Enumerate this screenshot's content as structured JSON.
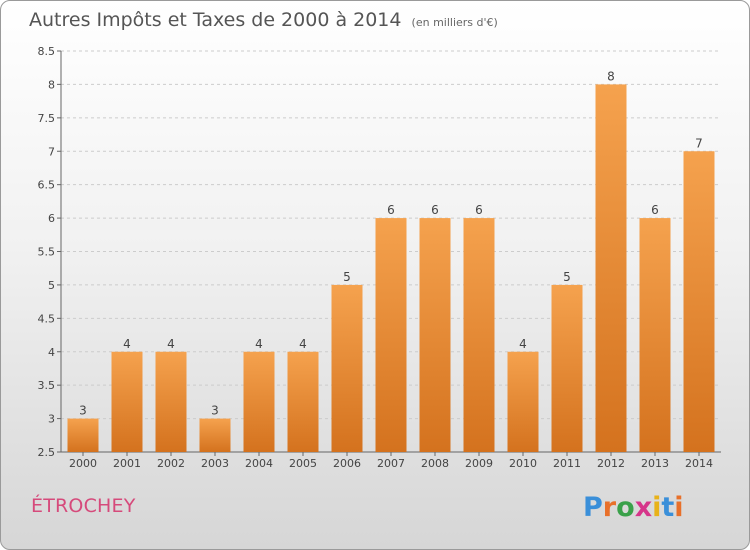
{
  "title": "Autres Impôts et Taxes de 2000 à 2014",
  "unit_label": "(en milliers d'€)",
  "commune": "ÉTROCHEY",
  "logo_text": "Proxiti",
  "colors": {
    "bar_top": "#f5a24e",
    "bar_bottom": "#d4721e",
    "commune": "#d64a7b",
    "grid": "#cccccc"
  },
  "chart_data": {
    "type": "bar",
    "categories": [
      "2000",
      "2001",
      "2002",
      "2003",
      "2004",
      "2005",
      "2006",
      "2007",
      "2008",
      "2009",
      "2010",
      "2011",
      "2012",
      "2013",
      "2014"
    ],
    "values": [
      3,
      4,
      4,
      3,
      4,
      4,
      5,
      6,
      6,
      6,
      4,
      5,
      8,
      6,
      7
    ],
    "data_labels": [
      "3",
      "4",
      "4",
      "3",
      "4",
      "4",
      "5",
      "6",
      "6",
      "6",
      "4",
      "5",
      "8",
      "6",
      "7"
    ],
    "ylim": [
      2.5,
      8.5
    ],
    "yticks": [
      "2.5",
      "3",
      "3.5",
      "4",
      "4.5",
      "5",
      "5.5",
      "6",
      "6.5",
      "7",
      "7.5",
      "8",
      "8.5"
    ],
    "grid": "horizontal dashed",
    "title": "Autres Impôts et Taxes de 2000 à 2014",
    "ylabel": "",
    "xlabel": ""
  }
}
